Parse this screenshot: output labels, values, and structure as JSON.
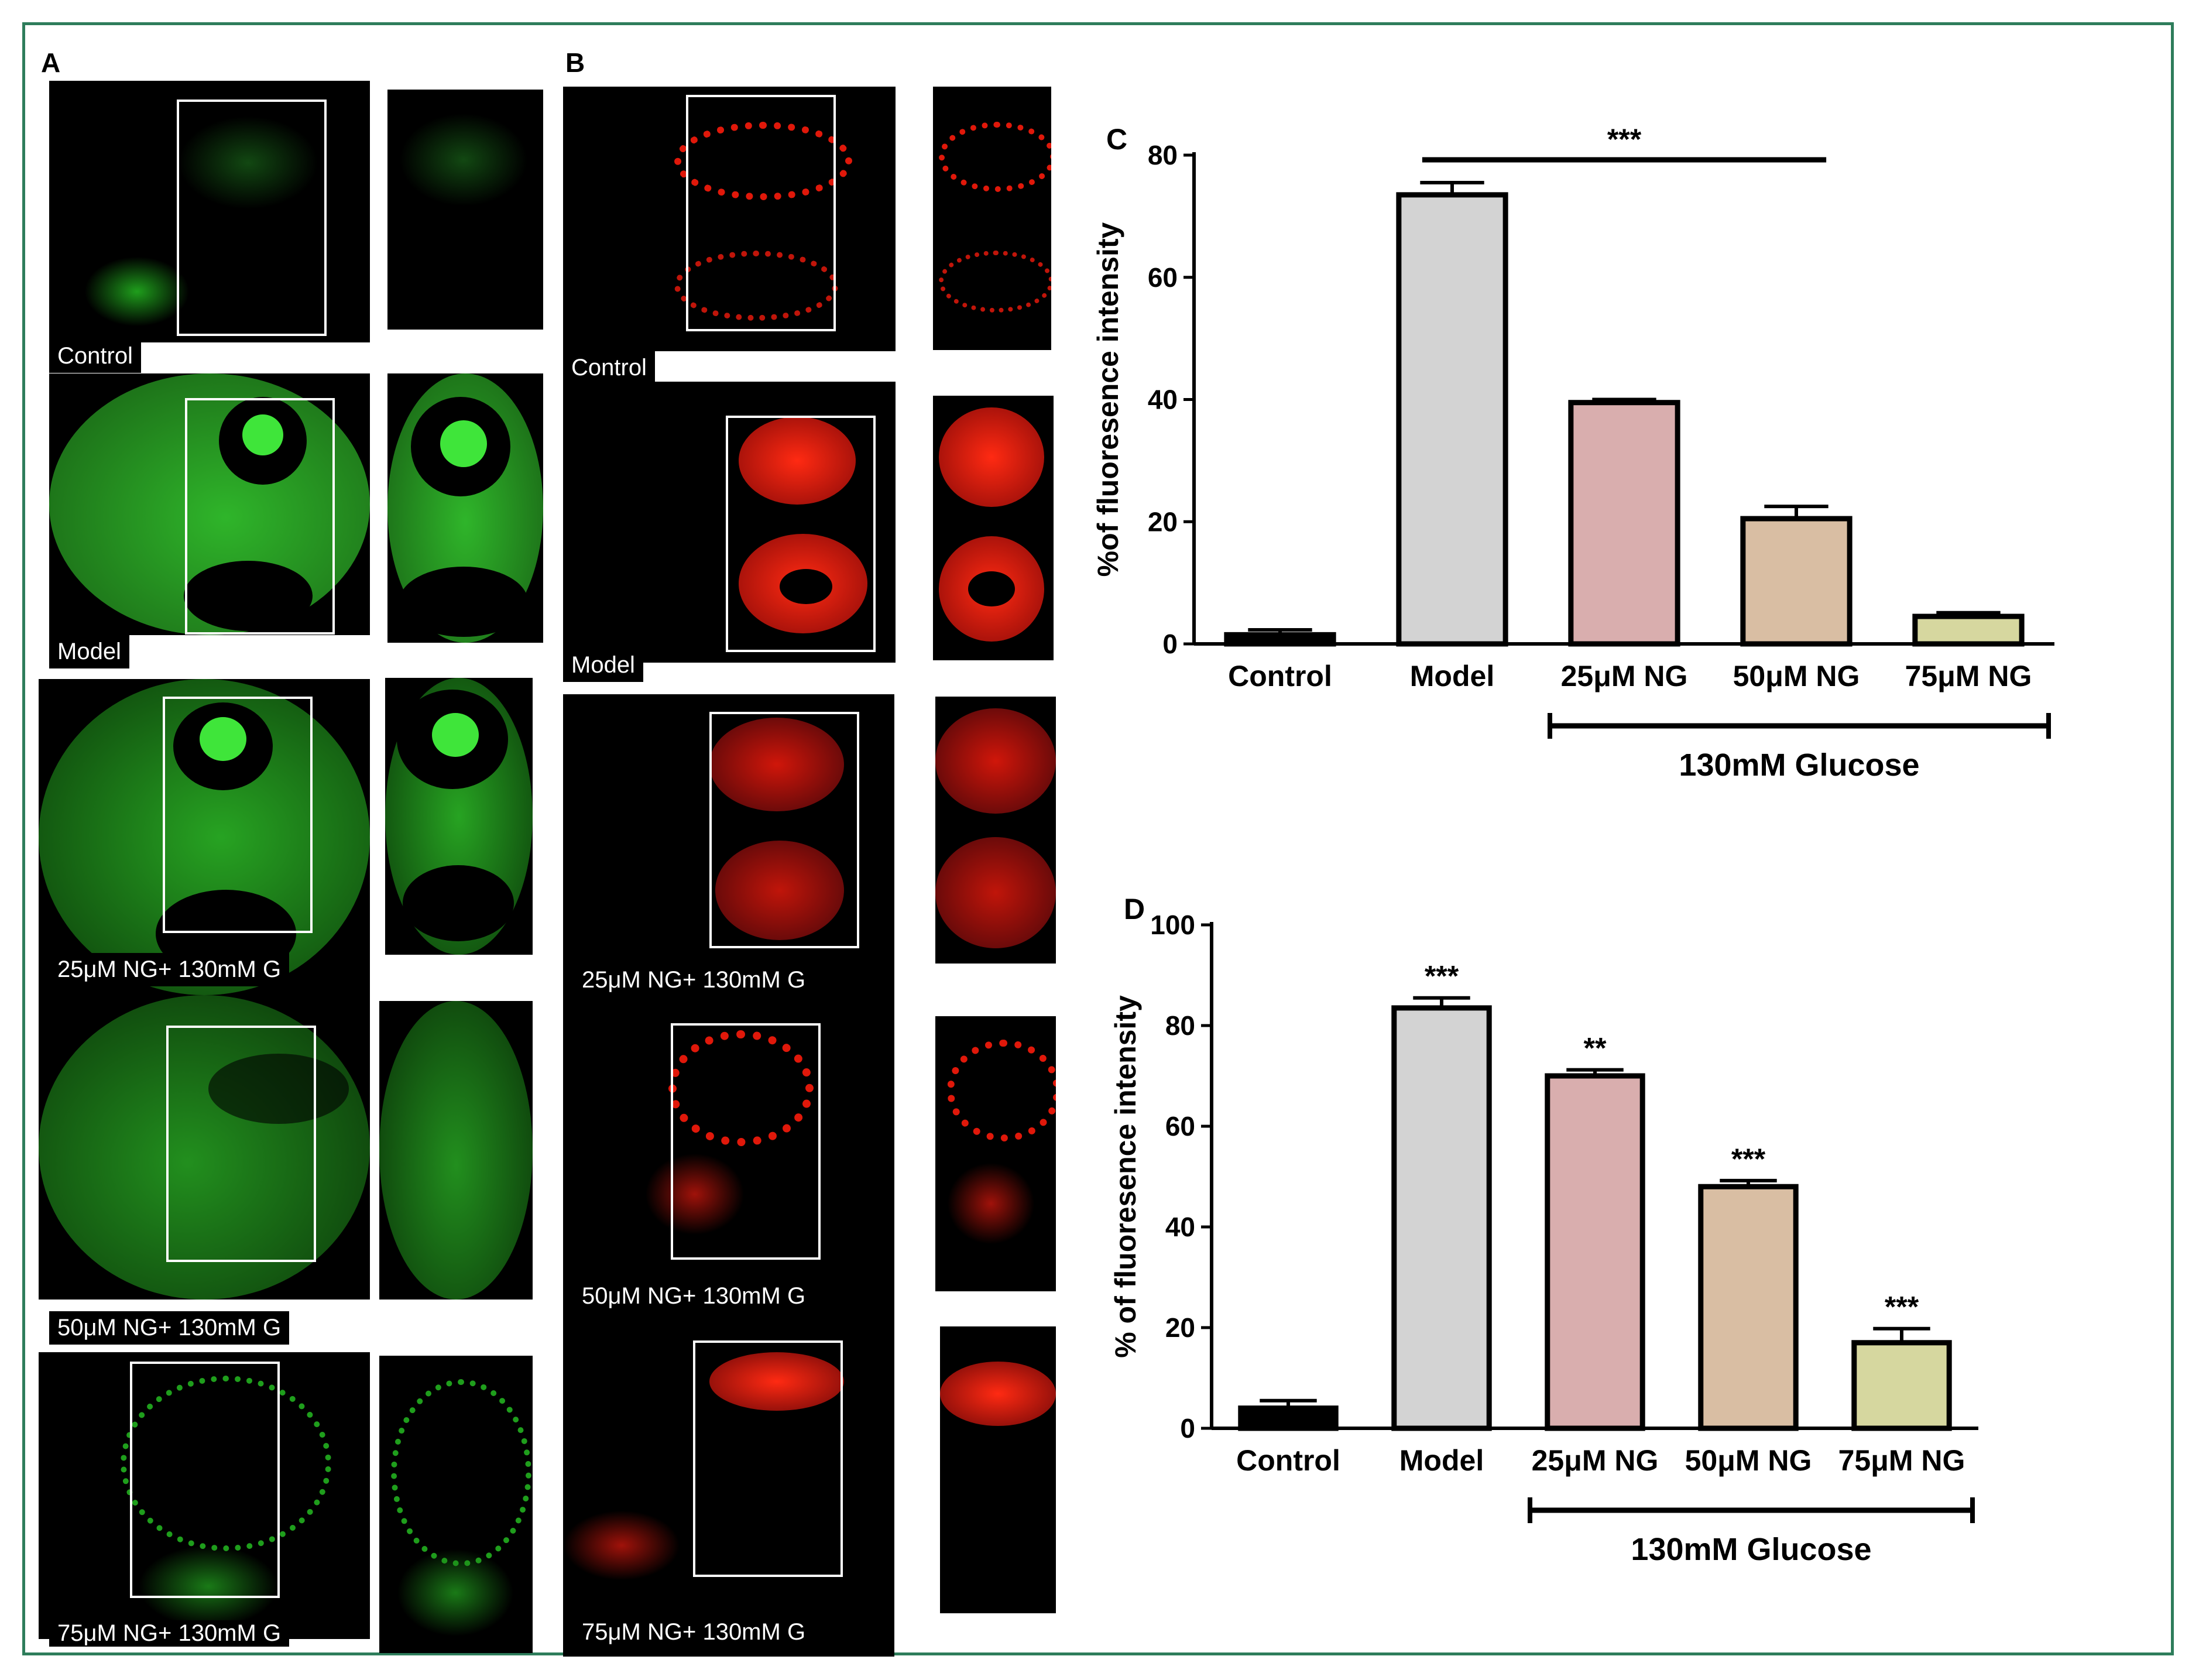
{
  "panels": {
    "A": {
      "label": "A"
    },
    "B": {
      "label": "B"
    }
  },
  "green_captions": [
    "Control",
    "Model",
    "25μM NG+ 130mM G",
    "50μM NG+ 130mM G",
    "75μM NG+ 130mM G"
  ],
  "red_captions": [
    "Control",
    "Model",
    "25μM NG+ 130mM G",
    "50μM NG+ 130mM G",
    "75μM NG+ 130mM G"
  ],
  "colors": {
    "frame": "#2e7d5b",
    "green_stain": "#22c41e",
    "red_stain": "#ff1a0a",
    "bars": [
      "#000000",
      "#d3d3d3",
      "#d9aeae",
      "#d9bea3",
      "#d6d79f"
    ]
  },
  "chart_data": [
    {
      "panel": "C",
      "type": "bar",
      "categories": [
        "Control",
        "Model",
        "25μM NG",
        "50μM NG",
        "75μM NG"
      ],
      "values": [
        1.5,
        73.5,
        39.5,
        20.5,
        4.5
      ],
      "errors": [
        0.8,
        2.0,
        0.5,
        2.0,
        0.6
      ],
      "ylabel": "%of fluoresence intensity",
      "ylim": [
        0,
        80
      ],
      "yticks": [
        0,
        20,
        40,
        60,
        80
      ],
      "significance": [
        {
          "text": "***",
          "from": "Model",
          "to": "50μM NG"
        }
      ],
      "group_label": "130mM Glucose",
      "group": [
        "25μM NG",
        "75μM NG"
      ]
    },
    {
      "panel": "D",
      "type": "bar",
      "categories": [
        "Control",
        "Model",
        "25μM NG",
        "50μM NG",
        "75μM NG"
      ],
      "values": [
        4,
        83.5,
        70,
        48,
        17
      ],
      "errors": [
        1.5,
        2.0,
        1.2,
        1.2,
        2.8
      ],
      "ylabel": "% of fluoresence intensity",
      "ylim": [
        0,
        100
      ],
      "yticks": [
        0,
        20,
        40,
        60,
        80,
        100
      ],
      "bar_annotations": [
        "",
        "***",
        "**",
        "***",
        "***"
      ],
      "group_label": "130mM Glucose",
      "group": [
        "25μM NG",
        "75μM NG"
      ]
    }
  ]
}
